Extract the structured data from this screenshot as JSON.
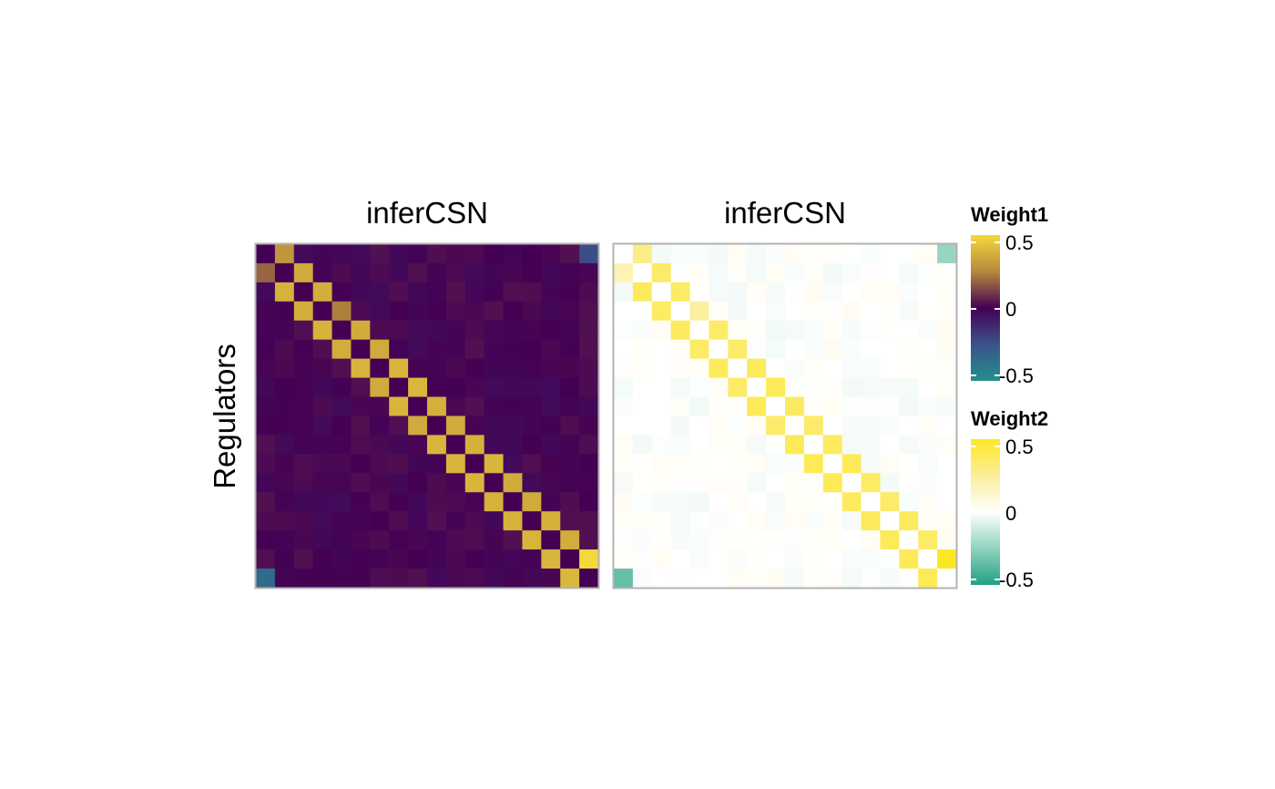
{
  "chart_data": [
    {
      "type": "heatmap",
      "title": "inferCSN",
      "ylabel": "Regulators",
      "xlabel": "",
      "size": 18,
      "diagonal_value": 0,
      "off_diagonal_value": 0.45,
      "strong_cells": [
        {
          "row": 1,
          "col": 18,
          "value": -0.28
        },
        {
          "row": 17,
          "col": 18,
          "value": 0.6
        },
        {
          "row": 18,
          "col": 1,
          "value": -0.42
        },
        {
          "row": 2,
          "col": 1,
          "value": 0.22
        },
        {
          "row": 4,
          "col": 5,
          "value": 0.28
        },
        {
          "row": 1,
          "col": 2,
          "value": 0.35
        }
      ],
      "legend": {
        "title": "Weight1",
        "colormap": "viridis",
        "ticks": [
          "0.5",
          "0",
          "-0.5"
        ],
        "range": [
          -0.6,
          0.6
        ]
      }
    },
    {
      "type": "heatmap",
      "title": "inferCSN",
      "ylabel": "",
      "xlabel": "",
      "size": 18,
      "diagonal_value": 0,
      "off_diagonal_value": 0.45,
      "strong_cells": [
        {
          "row": 1,
          "col": 18,
          "value": -0.28
        },
        {
          "row": 17,
          "col": 18,
          "value": 0.6
        },
        {
          "row": 18,
          "col": 1,
          "value": -0.42
        },
        {
          "row": 2,
          "col": 1,
          "value": 0.22
        },
        {
          "row": 4,
          "col": 5,
          "value": 0.28
        },
        {
          "row": 1,
          "col": 2,
          "value": 0.35
        }
      ],
      "legend": {
        "title": "Weight2",
        "colormap": "white-center diverging",
        "ticks": [
          "0.5",
          "0",
          "-0.5"
        ],
        "range": [
          -0.6,
          0.6
        ]
      }
    }
  ]
}
